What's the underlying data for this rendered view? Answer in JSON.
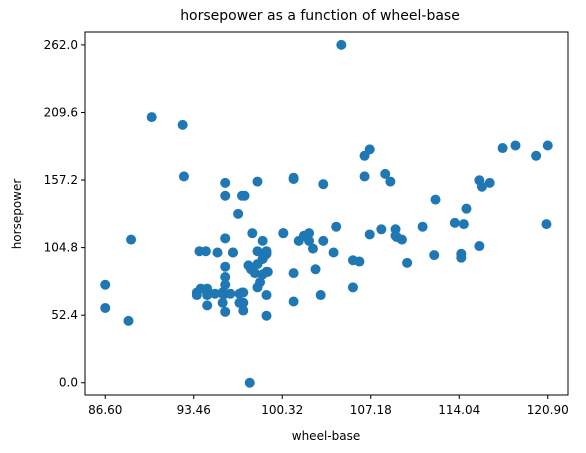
{
  "chart_data": {
    "type": "scatter",
    "title": "horsepower as a function of wheel-base",
    "xlabel": "wheel-base",
    "ylabel": "horsepower",
    "xlim": [
      85.03,
      122.47
    ],
    "ylim": [
      -9.5,
      272.0
    ],
    "xticks": [
      "86.60",
      "93.46",
      "100.32",
      "107.18",
      "114.04",
      "120.90"
    ],
    "yticks": [
      "0.0",
      "52.4",
      "104.8",
      "157.2",
      "209.6",
      "262.0"
    ],
    "marker_color": "#1f77b4",
    "grid": false,
    "points": [
      [
        86.6,
        76
      ],
      [
        86.6,
        58
      ],
      [
        88.4,
        48
      ],
      [
        88.6,
        111
      ],
      [
        90.2,
        206
      ],
      [
        92.6,
        200
      ],
      [
        92.7,
        160
      ],
      [
        94.4,
        102
      ],
      [
        93.7,
        68
      ],
      [
        93.7,
        70
      ],
      [
        94.0,
        73
      ],
      [
        93.9,
        102
      ],
      [
        94.5,
        60
      ],
      [
        94.5,
        68
      ],
      [
        94.5,
        70
      ],
      [
        94.5,
        73
      ],
      [
        95.1,
        69
      ],
      [
        95.3,
        101
      ],
      [
        95.7,
        62
      ],
      [
        95.7,
        69
      ],
      [
        95.7,
        70
      ],
      [
        95.7,
        70
      ],
      [
        95.9,
        55
      ],
      [
        95.9,
        69
      ],
      [
        95.9,
        76
      ],
      [
        95.9,
        82
      ],
      [
        95.9,
        90
      ],
      [
        95.9,
        112
      ],
      [
        95.9,
        145
      ],
      [
        95.9,
        155
      ],
      [
        96.3,
        69
      ],
      [
        96.5,
        101
      ],
      [
        96.5,
        101
      ],
      [
        96.9,
        131
      ],
      [
        97.0,
        62
      ],
      [
        97.0,
        69
      ],
      [
        97.2,
        70
      ],
      [
        97.3,
        56
      ],
      [
        97.3,
        62
      ],
      [
        97.3,
        70
      ],
      [
        97.2,
        145
      ],
      [
        97.4,
        145
      ],
      [
        97.7,
        91
      ],
      [
        97.8,
        0
      ],
      [
        97.9,
        88
      ],
      [
        98.0,
        116
      ],
      [
        98.2,
        85
      ],
      [
        98.4,
        102
      ],
      [
        98.4,
        156
      ],
      [
        98.4,
        92
      ],
      [
        98.4,
        74
      ],
      [
        98.6,
        78
      ],
      [
        98.8,
        84
      ],
      [
        98.8,
        96
      ],
      [
        98.8,
        110
      ],
      [
        98.9,
        98
      ],
      [
        99.0,
        101
      ],
      [
        99.1,
        52
      ],
      [
        99.1,
        68
      ],
      [
        99.1,
        86
      ],
      [
        99.1,
        100
      ],
      [
        99.1,
        86
      ],
      [
        99.1,
        102
      ],
      [
        99.2,
        86
      ],
      [
        100.4,
        116
      ],
      [
        100.4,
        116
      ],
      [
        101.2,
        63
      ],
      [
        101.2,
        85
      ],
      [
        101.2,
        158
      ],
      [
        101.2,
        159
      ],
      [
        101.6,
        110
      ],
      [
        102.0,
        114
      ],
      [
        102.4,
        110
      ],
      [
        102.4,
        116
      ],
      [
        102.7,
        104
      ],
      [
        102.9,
        88
      ],
      [
        103.3,
        68
      ],
      [
        103.5,
        154
      ],
      [
        103.5,
        110
      ],
      [
        104.3,
        101
      ],
      [
        104.5,
        121
      ],
      [
        104.9,
        262
      ],
      [
        105.8,
        74
      ],
      [
        105.8,
        95
      ],
      [
        106.3,
        94
      ],
      [
        106.7,
        160
      ],
      [
        106.7,
        176
      ],
      [
        107.1,
        181
      ],
      [
        107.1,
        115
      ],
      [
        108.0,
        119
      ],
      [
        108.3,
        162
      ],
      [
        108.7,
        156
      ],
      [
        109.1,
        114
      ],
      [
        109.1,
        119
      ],
      [
        109.2,
        113
      ],
      [
        109.6,
        111
      ],
      [
        110.0,
        93
      ],
      [
        111.2,
        121
      ],
      [
        112.1,
        99
      ],
      [
        112.2,
        142
      ],
      [
        114.2,
        100
      ],
      [
        114.2,
        97
      ],
      [
        114.4,
        123
      ],
      [
        114.6,
        135
      ],
      [
        115.6,
        157
      ],
      [
        115.6,
        106
      ],
      [
        117.4,
        182
      ],
      [
        118.4,
        184
      ],
      [
        120.0,
        176
      ],
      [
        120.9,
        184
      ],
      [
        120.8,
        123
      ],
      [
        116.4,
        155
      ],
      [
        113.7,
        124
      ],
      [
        115.8,
        152
      ]
    ]
  }
}
